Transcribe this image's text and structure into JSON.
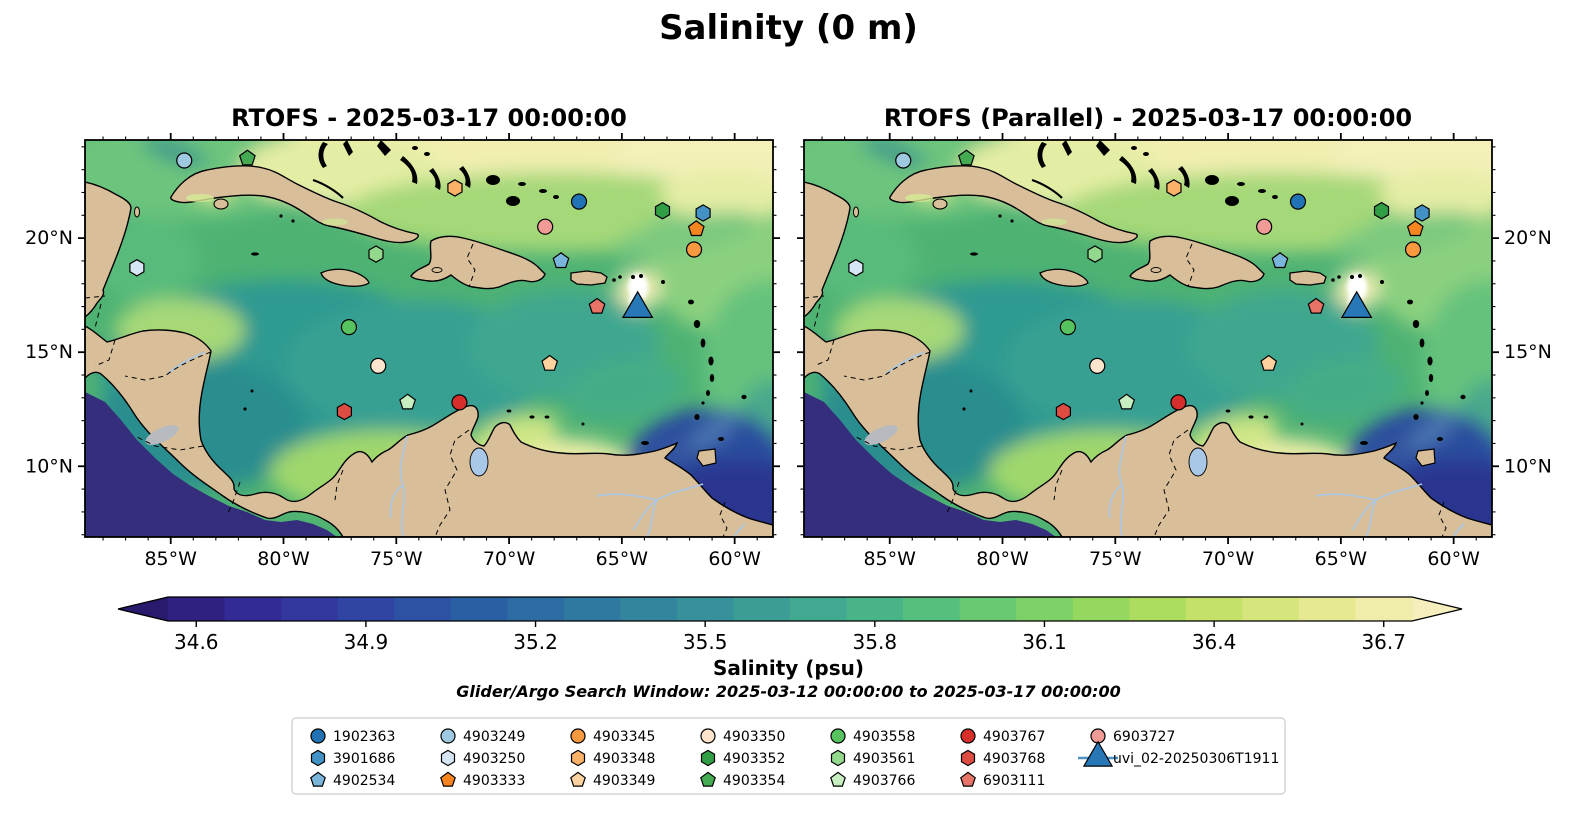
{
  "title": "Salinity (0 m)",
  "panels": [
    {
      "id": "rtofs",
      "title": "RTOFS - 2025-03-17 00:00:00"
    },
    {
      "id": "rtofs_parallel",
      "title": "RTOFS (Parallel) - 2025-03-17 00:00:00"
    }
  ],
  "subtitle": "Glider/Argo Search Window: 2025-03-12 00:00:00 to 2025-03-17 00:00:00",
  "axes": {
    "extent": {
      "lon_min": -88.8,
      "lon_max": -58.3,
      "lat_min": 6.9,
      "lat_max": 24.3
    },
    "lon_major": [
      {
        "value": -85,
        "label": "85°W"
      },
      {
        "value": -80,
        "label": "80°W"
      },
      {
        "value": -75,
        "label": "75°W"
      },
      {
        "value": -70,
        "label": "70°W"
      },
      {
        "value": -65,
        "label": "65°W"
      },
      {
        "value": -60,
        "label": "60°W"
      }
    ],
    "lat_major": [
      {
        "value": 20,
        "label": "20°N"
      },
      {
        "value": 15,
        "label": "15°N"
      },
      {
        "value": 10,
        "label": "10°N"
      }
    ],
    "lon_minor_step": 1,
    "lat_minor_step": 1
  },
  "colorbar": {
    "label": "Salinity (psu)",
    "range": [
      34.55,
      36.75
    ],
    "tick_values": [
      34.6,
      34.9,
      35.2,
      35.5,
      35.8,
      36.1,
      36.4,
      36.7
    ],
    "tick_labels": [
      "34.6",
      "34.9",
      "35.2",
      "35.5",
      "35.8",
      "36.1",
      "36.4",
      "36.7"
    ],
    "extend_low_color": "#291a6d",
    "extend_high_color": "#f6efbd",
    "segment_colors": [
      "#2e2182",
      "#332b95",
      "#32379d",
      "#3044a2",
      "#2d52a4",
      "#2a5fa4",
      "#2c6ca3",
      "#2f79a1",
      "#33859e",
      "#37919b",
      "#3c9d96",
      "#42a991",
      "#4ab489",
      "#57bf7e",
      "#68c972",
      "#7dd167",
      "#94d85f",
      "#addd5f",
      "#c4e16a",
      "#d7e57d",
      "#e6e992",
      "#f0ecaa"
    ]
  },
  "legend": {
    "glider_line_color": "#4a90c4",
    "columns": 7,
    "rows": 3
  },
  "chart_data": {
    "type": "heatmap",
    "description": "Sea-surface salinity (psu) from RTOFS and RTOFS-Parallel models over the Caribbean Sea on 2025-03-17, colormap haline 34.55-36.75 psu, with Argo float and glider observation locations overlaid identically on both panels.",
    "markers": [
      {
        "id": "1902363",
        "shape": "circle",
        "color": "#2273b5",
        "lon": -66.9,
        "lat": 21.6
      },
      {
        "id": "3901686",
        "shape": "hexagon",
        "color": "#4292c6",
        "lon": -61.4,
        "lat": 21.1
      },
      {
        "id": "4902534",
        "shape": "pentagon",
        "color": "#7ab6dc",
        "lon": -67.7,
        "lat": 19.0
      },
      {
        "id": "4903249",
        "shape": "circle",
        "color": "#9ecae1",
        "lon": -84.4,
        "lat": 23.4
      },
      {
        "id": "4903250",
        "shape": "hexagon",
        "color": "#d6e6f4",
        "lon": -86.5,
        "lat": 18.7
      },
      {
        "id": "4903333",
        "shape": "pentagon",
        "color": "#f5861f",
        "lon": -61.7,
        "lat": 20.4
      },
      {
        "id": "4903345",
        "shape": "circle",
        "color": "#f9993f",
        "lon": -61.8,
        "lat": 19.5
      },
      {
        "id": "4903348",
        "shape": "hexagon",
        "color": "#fbb268",
        "lon": -72.4,
        "lat": 22.2
      },
      {
        "id": "4903349",
        "shape": "pentagon",
        "color": "#fdd29f",
        "lon": -68.2,
        "lat": 14.5
      },
      {
        "id": "4903350",
        "shape": "circle",
        "color": "#fde5cd",
        "lon": -75.8,
        "lat": 14.4
      },
      {
        "id": "4903352",
        "shape": "hexagon",
        "color": "#2f9e44",
        "lon": -63.2,
        "lat": 21.2
      },
      {
        "id": "4903354",
        "shape": "pentagon",
        "color": "#44ab52",
        "lon": -81.6,
        "lat": 23.5
      },
      {
        "id": "4903558",
        "shape": "circle",
        "color": "#57c35f",
        "lon": -77.1,
        "lat": 16.1
      },
      {
        "id": "4903561",
        "shape": "hexagon",
        "color": "#92d98d",
        "lon": -75.9,
        "lat": 19.3
      },
      {
        "id": "4903766",
        "shape": "pentagon",
        "color": "#c6eec0",
        "lon": -74.5,
        "lat": 12.8
      },
      {
        "id": "4903767",
        "shape": "circle",
        "color": "#d62e2a",
        "lon": -72.2,
        "lat": 12.8
      },
      {
        "id": "4903768",
        "shape": "hexagon",
        "color": "#dd4b41",
        "lon": -77.3,
        "lat": 12.4
      },
      {
        "id": "6903111",
        "shape": "pentagon",
        "color": "#e87468",
        "lon": -66.1,
        "lat": 17.0
      },
      {
        "id": "6903727",
        "shape": "circle",
        "color": "#f09b96",
        "lon": -68.4,
        "lat": 20.5
      },
      {
        "id": "uvi_02-20250306T1911",
        "shape": "triangle",
        "color": "#2878b8",
        "lon": -64.3,
        "lat": 16.9
      }
    ]
  }
}
